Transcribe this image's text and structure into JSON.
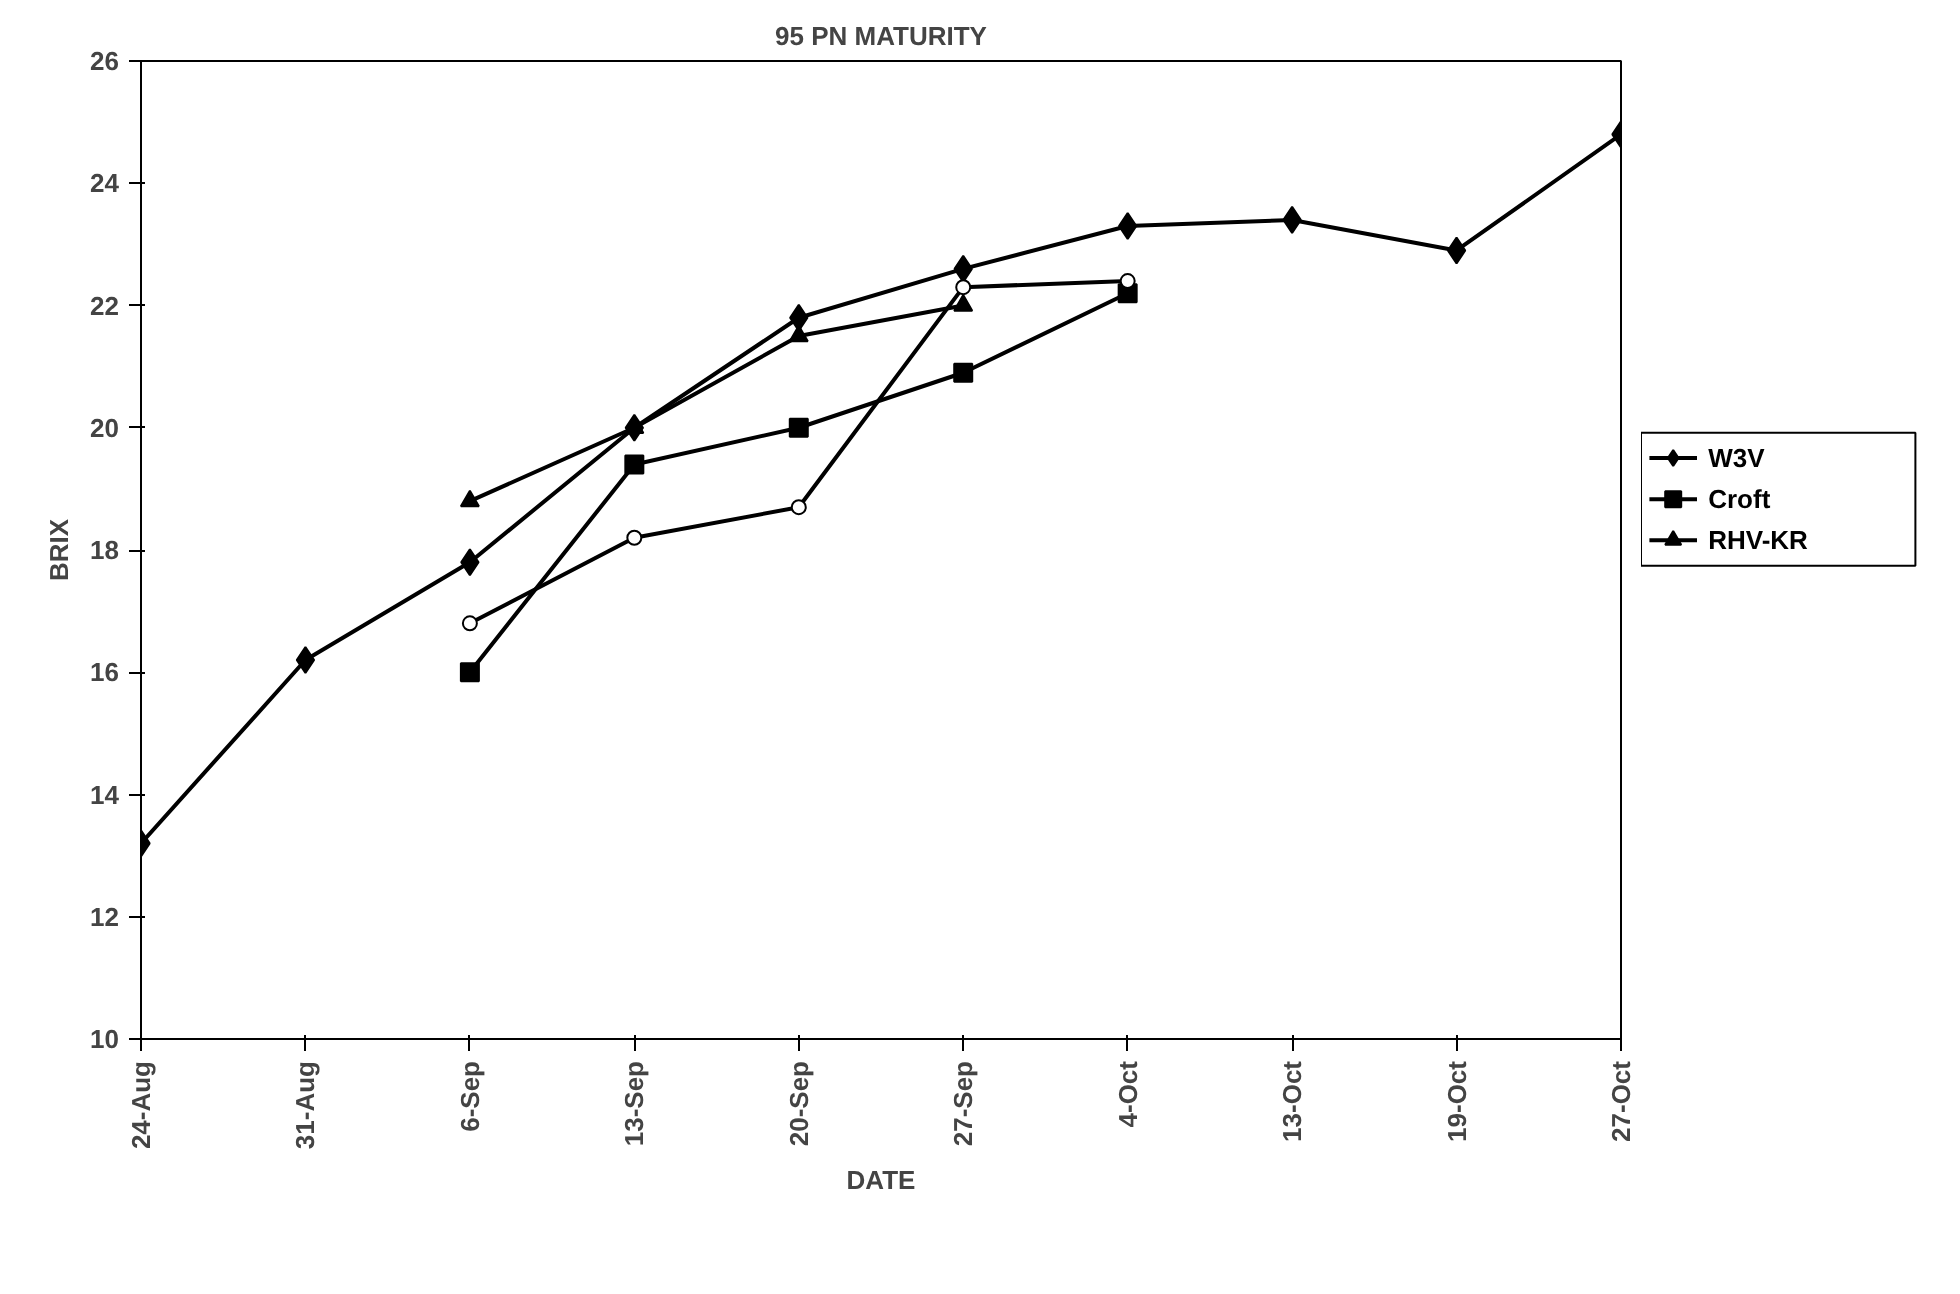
{
  "chart_data": {
    "type": "line",
    "title": "95 PN MATURITY",
    "xlabel": "DATE",
    "ylabel": "BRIX",
    "categories": [
      "24-Aug",
      "31-Aug",
      "6-Sep",
      "13-Sep",
      "20-Sep",
      "27-Sep",
      "4-Oct",
      "13-Oct",
      "19-Oct",
      "27-Oct"
    ],
    "ylim": [
      10,
      26
    ],
    "yticks": [
      10,
      12,
      14,
      16,
      18,
      20,
      22,
      24,
      26
    ],
    "grid": false,
    "legend": "right",
    "line_style": "solid",
    "series": [
      {
        "name": "W3V",
        "color": "#000000",
        "marker": "diamond",
        "values": [
          13.2,
          16.2,
          17.8,
          20.0,
          21.8,
          22.6,
          23.3,
          23.4,
          22.9,
          24.8
        ]
      },
      {
        "name": "Croft",
        "color": "#000000",
        "marker": "square",
        "values": [
          null,
          null,
          16.0,
          19.4,
          20.0,
          20.9,
          22.2,
          null,
          null,
          null
        ]
      },
      {
        "name": "RHV-KR",
        "color": "#000000",
        "marker": "triangle",
        "values": [
          null,
          null,
          18.8,
          20.0,
          21.5,
          22.0,
          null,
          null,
          null,
          null
        ]
      },
      {
        "color": "#000000",
        "marker": "circle",
        "values": [
          null,
          null,
          16.8,
          18.2,
          18.7,
          22.3,
          22.4,
          null,
          null,
          null
        ]
      }
    ]
  }
}
